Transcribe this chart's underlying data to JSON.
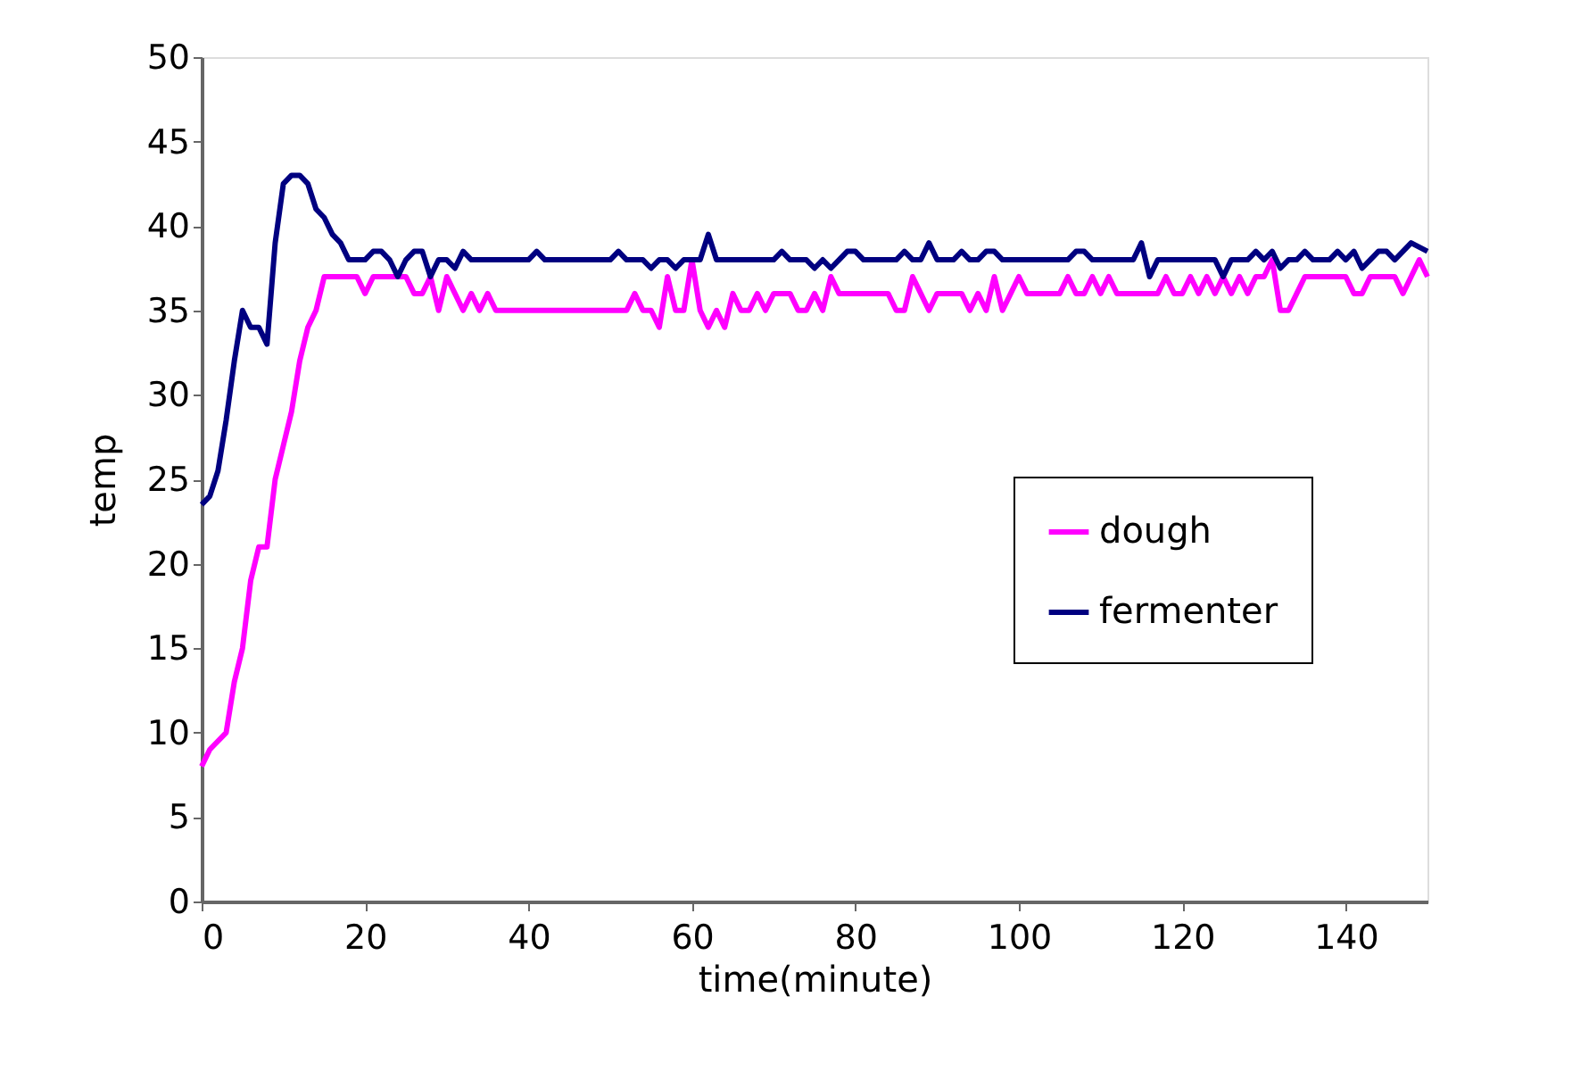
{
  "chart_data": {
    "type": "line",
    "xlabel": "time(minute)",
    "ylabel": "temp",
    "xlim": [
      0,
      150
    ],
    "xticks": [
      0,
      20,
      40,
      60,
      80,
      100,
      120,
      140
    ],
    "ylim": [
      0,
      50
    ],
    "yticks": [
      0,
      5,
      10,
      15,
      20,
      25,
      30,
      35,
      40,
      45,
      50
    ],
    "grid": false,
    "legend": "right",
    "marker": "none",
    "line_style": "solid",
    "series": [
      {
        "name": "dough",
        "color": "#ff00ff",
        "x": [
          0,
          1,
          3,
          4,
          5,
          6,
          7,
          8,
          9,
          10,
          11,
          12,
          13,
          14,
          15,
          19,
          20,
          21,
          25,
          26,
          27,
          28,
          29,
          30,
          31,
          32,
          33,
          34,
          35,
          36,
          52,
          53,
          54,
          55,
          56,
          57,
          58,
          59,
          60,
          61,
          62,
          63,
          64,
          65,
          66,
          67,
          68,
          69,
          70,
          72,
          73,
          74,
          75,
          76,
          77,
          78,
          84,
          85,
          86,
          87,
          88,
          89,
          90,
          93,
          94,
          95,
          96,
          97,
          98,
          99,
          100,
          101,
          105,
          106,
          107,
          108,
          109,
          110,
          111,
          112,
          117,
          118,
          119,
          120,
          121,
          122,
          123,
          124,
          125,
          126,
          127,
          128,
          129,
          130,
          131,
          132,
          133,
          134,
          135,
          140,
          141,
          142,
          143,
          146,
          147,
          148,
          149,
          150
        ],
        "values": [
          8,
          9,
          10,
          13,
          15,
          19,
          21,
          21,
          25,
          27,
          29,
          32,
          34,
          35,
          37,
          37,
          36,
          37,
          37,
          36,
          36,
          37,
          35,
          37,
          36,
          35,
          36,
          35,
          36,
          35,
          35,
          36,
          35,
          35,
          34,
          37,
          35,
          35,
          38,
          35,
          34,
          35,
          34,
          36,
          35,
          35,
          36,
          35,
          36,
          36,
          35,
          35,
          36,
          35,
          37,
          36,
          36,
          35,
          35,
          37,
          36,
          35,
          36,
          36,
          35,
          36,
          35,
          37,
          35,
          36,
          37,
          36,
          36,
          37,
          36,
          36,
          37,
          36,
          37,
          36,
          36,
          37,
          36,
          36,
          37,
          36,
          37,
          36,
          37,
          36,
          37,
          36,
          37,
          37,
          38,
          35,
          35,
          36,
          37,
          37,
          36,
          36,
          37,
          37,
          36,
          37,
          38,
          37
        ]
      },
      {
        "name": "fermenter",
        "color": "#000080",
        "x": [
          0,
          1,
          2,
          3,
          4,
          5,
          6,
          7,
          8,
          9,
          10,
          11,
          12,
          13,
          14,
          15,
          16,
          17,
          18,
          20,
          21,
          22,
          23,
          24,
          25,
          26,
          27,
          28,
          29,
          30,
          31,
          32,
          33,
          40,
          41,
          42,
          50,
          51,
          52,
          54,
          55,
          56,
          57,
          58,
          59,
          61,
          62,
          63,
          70,
          71,
          72,
          74,
          75,
          76,
          77,
          78,
          79,
          80,
          81,
          85,
          86,
          87,
          88,
          89,
          90,
          92,
          93,
          94,
          95,
          96,
          97,
          98,
          106,
          107,
          108,
          109,
          114,
          115,
          116,
          117,
          124,
          125,
          126,
          128,
          129,
          130,
          131,
          132,
          133,
          134,
          135,
          136,
          138,
          139,
          140,
          141,
          142,
          143,
          144,
          145,
          146,
          147,
          148,
          150
        ],
        "values": [
          23.5,
          24,
          25.5,
          28.5,
          32,
          35,
          34,
          34,
          33,
          39,
          42.5,
          43,
          43,
          42.5,
          41,
          40.5,
          39.5,
          39,
          38,
          38,
          38.5,
          38.5,
          38,
          37,
          38,
          38.5,
          38.5,
          37,
          38,
          38,
          37.5,
          38.5,
          38,
          38,
          38.5,
          38,
          38,
          38.5,
          38,
          38,
          37.5,
          38,
          38,
          37.5,
          38,
          38,
          39.5,
          38,
          38,
          38.5,
          38,
          38,
          37.5,
          38,
          37.5,
          38,
          38.5,
          38.5,
          38,
          38,
          38.5,
          38,
          38,
          39,
          38,
          38,
          38.5,
          38,
          38,
          38.5,
          38.5,
          38,
          38,
          38.5,
          38.5,
          38,
          38,
          39,
          37,
          38,
          38,
          37,
          38,
          38,
          38.5,
          38,
          38.5,
          37.5,
          38,
          38,
          38.5,
          38,
          38,
          38.5,
          38,
          38.5,
          37.5,
          38,
          38.5,
          38.5,
          38,
          38.5,
          39,
          38.5
        ]
      }
    ]
  }
}
